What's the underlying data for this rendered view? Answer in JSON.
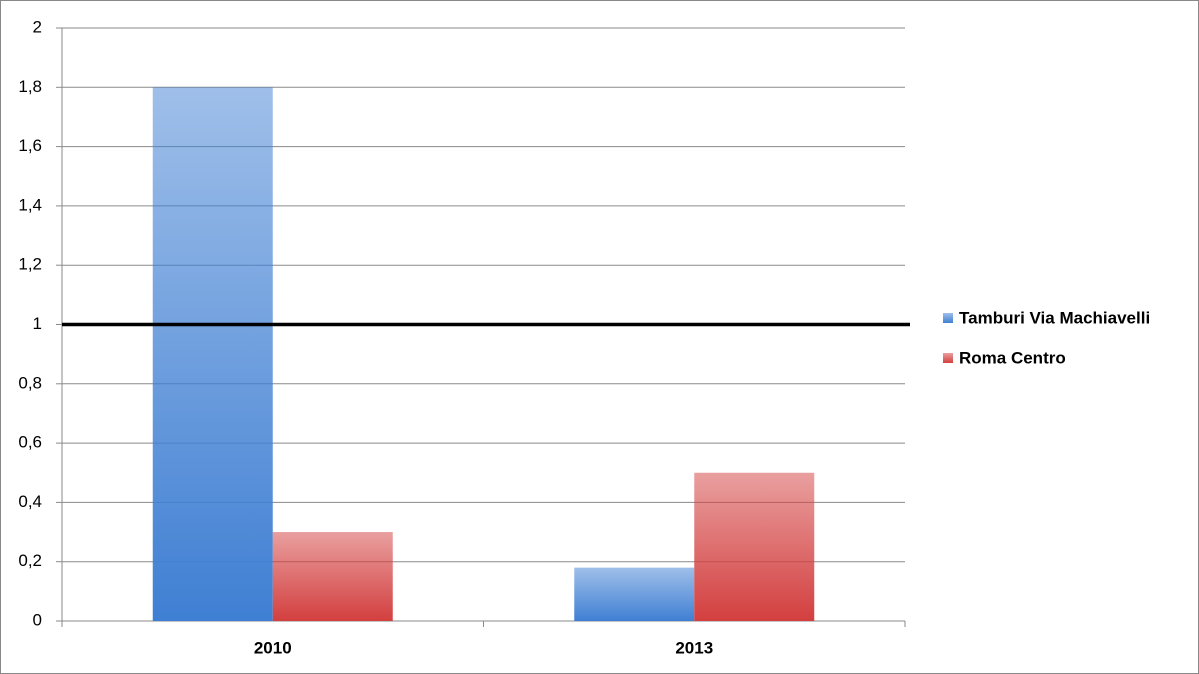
{
  "chart_data": {
    "type": "bar",
    "categories": [
      "2010",
      "2013"
    ],
    "series": [
      {
        "name": "Tamburi Via Machiavelli",
        "color": "#3f7fd3",
        "values": [
          1.8,
          0.18
        ]
      },
      {
        "name": "Roma Centro",
        "color": "#d33f3f",
        "values": [
          0.3,
          0.5
        ]
      }
    ],
    "ylim": [
      0,
      2
    ],
    "yticks": [
      0,
      {
        "value": 0.2,
        "label": "0,2"
      },
      {
        "value": 0.4,
        "label": "0,4"
      },
      {
        "value": 0.6,
        "label": "0,6"
      },
      {
        "value": 0.8,
        "label": "0,8"
      },
      1,
      {
        "value": 1.2,
        "label": "1,2"
      },
      {
        "value": 1.4,
        "label": "1,4"
      },
      {
        "value": 1.6,
        "label": "1,6"
      },
      {
        "value": 1.8,
        "label": "1,8"
      },
      2
    ],
    "grid": true,
    "reference_line": 1,
    "legend": "right"
  }
}
